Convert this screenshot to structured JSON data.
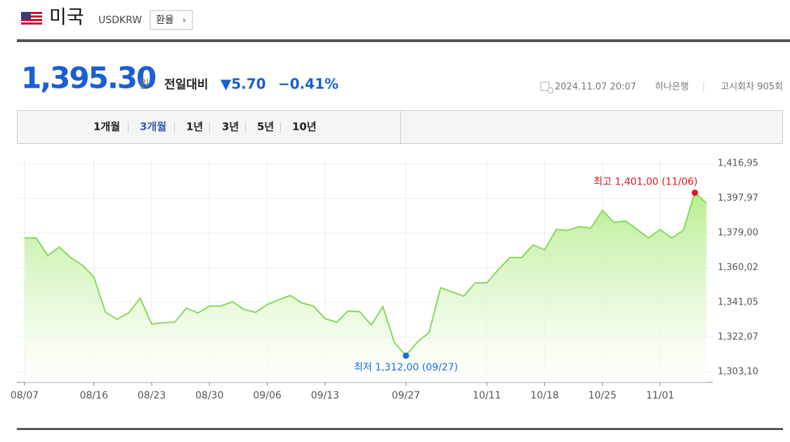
{
  "header": {
    "country": "미국",
    "code": "USDKRW",
    "button": "환율",
    "price": "1,395.30",
    "price_unit": "원",
    "change_label": "전일대비",
    "change": "▼5.70",
    "change_pct": "−0.41%",
    "datetime": "2024.11.07 20:07",
    "bank": "하나은행",
    "round": "고시회차 905회"
  },
  "tabs": [
    "1개월",
    "3개월",
    "1년",
    "3년",
    "5년",
    "10년"
  ],
  "active_tab": "3개월",
  "chart_data": {
    "type": "line",
    "color": "#86d95a",
    "categories": [
      "08/07",
      null,
      null,
      null,
      null,
      null,
      "08/16",
      null,
      null,
      null,
      null,
      "08/23",
      null,
      null,
      null,
      null,
      "08/30",
      null,
      null,
      null,
      null,
      "09/06",
      null,
      null,
      null,
      null,
      "09/13",
      null,
      null,
      null,
      null,
      null,
      null,
      "09/27",
      null,
      null,
      null,
      null,
      null,
      null,
      "10/11",
      null,
      null,
      null,
      null,
      "10/18",
      null,
      null,
      null,
      null,
      "10/25",
      null,
      null,
      null,
      null,
      "11/01",
      null,
      null,
      null,
      null
    ],
    "values": [
      1376.3,
      1376.3,
      1366.7,
      1371.3,
      1365.6,
      1361.4,
      1354.9,
      1335.7,
      1331.9,
      1335.3,
      1343.4,
      1329.2,
      1330.0,
      1330.3,
      1338.0,
      1335.3,
      1339.1,
      1339.1,
      1341.4,
      1337.2,
      1335.7,
      1339.9,
      1342.6,
      1344.9,
      1340.7,
      1339.1,
      1332.2,
      1330.3,
      1336.4,
      1336.0,
      1328.8,
      1338.7,
      1319.2,
      1312.0,
      1319.6,
      1324.6,
      1349.1,
      1346.8,
      1344.5,
      1351.8,
      1351.8,
      1359.1,
      1365.6,
      1365.6,
      1372.5,
      1369.8,
      1380.9,
      1380.5,
      1382.5,
      1381.7,
      1391.3,
      1384.8,
      1385.5,
      1380.9,
      1376.3,
      1380.9,
      1376.3,
      1380.5,
      1401.0,
      1395.3
    ],
    "ylim": [
      1297.4,
      1418.9
    ],
    "yticks": [
      {
        "value": 1416.95,
        "label": "1,416,95"
      },
      {
        "value": 1397.97,
        "label": "1,397,97"
      },
      {
        "value": 1379.0,
        "label": "1,379,00"
      },
      {
        "value": 1360.02,
        "label": "1,360,02"
      },
      {
        "value": 1341.05,
        "label": "1,341,05"
      },
      {
        "value": 1322.07,
        "label": "1,322,07"
      },
      {
        "value": 1303.1,
        "label": "1,303,10"
      }
    ],
    "high_label": "최고 1,401,00 (11/06)",
    "low_label": "최저 1,312,00 (09/27)",
    "high_color": "#e0141e",
    "low_color": "#1a6fd6",
    "grid": true
  }
}
